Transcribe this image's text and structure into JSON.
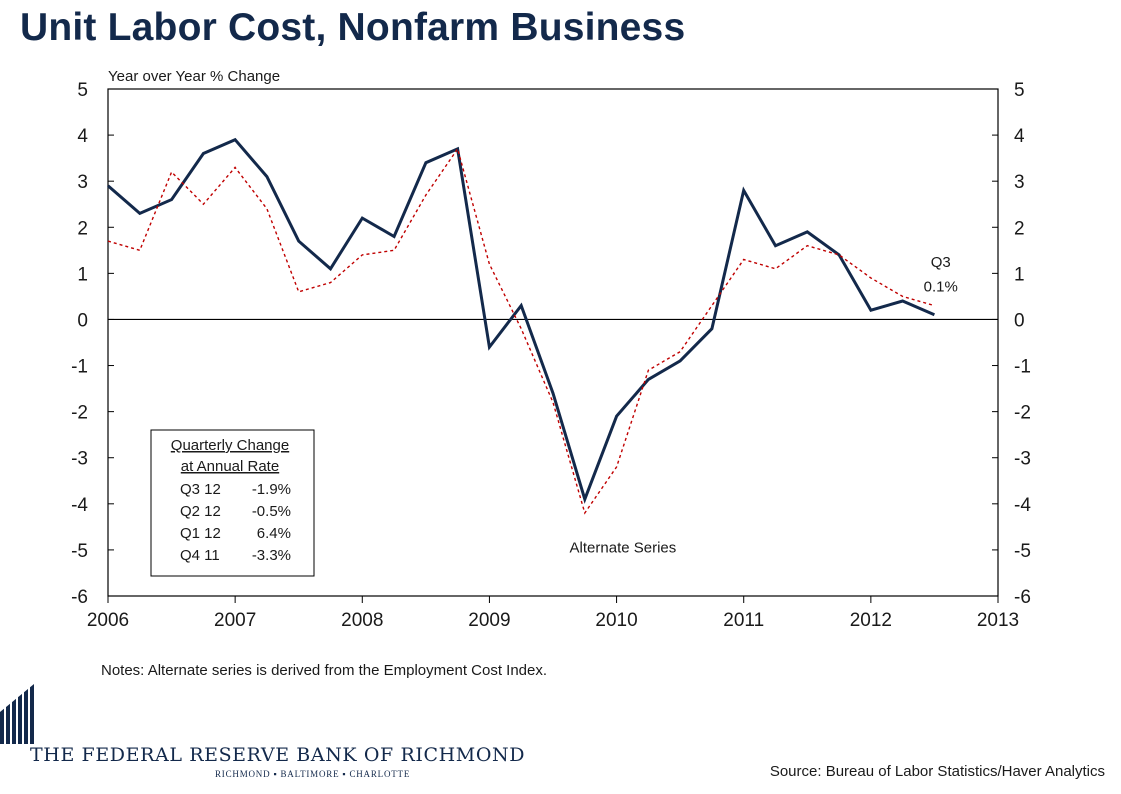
{
  "title": "Unit Labor Cost, Nonfarm Business",
  "notes": "Notes: Alternate series is derived from the Employment Cost Index.",
  "source": "Source: Bureau of Labor Statistics/Haver Analytics",
  "bank": {
    "name": "THE FEDERAL RESERVE BANK OF RICHMOND",
    "cities": "RICHMOND ▪ BALTIMORE ▪ CHARLOTTE"
  },
  "colors": {
    "title": "#13294b",
    "main_series": "#13294b",
    "alternate_series": "#c00000",
    "axis": "#000000"
  },
  "legend_box": {
    "heading1": "Quarterly Change",
    "heading2": "at Annual Rate",
    "rows": [
      {
        "period": "Q3 12",
        "value": "-1.9%"
      },
      {
        "period": "Q2 12",
        "value": "-0.5%"
      },
      {
        "period": "Q1 12",
        "value": "6.4%"
      },
      {
        "period": "Q4 11",
        "value": "-3.3%"
      }
    ]
  },
  "chart_data": {
    "type": "line",
    "title": "Unit Labor Cost, Nonfarm Business",
    "ylabel": "Year over Year % Change",
    "xlabel": "",
    "xlim": [
      2006,
      2013
    ],
    "ylim": [
      -6,
      5
    ],
    "x_ticks": [
      "2006",
      "2007",
      "2008",
      "2009",
      "2010",
      "2011",
      "2012",
      "2013"
    ],
    "y_ticks": [
      "5",
      "4",
      "3",
      "2",
      "1",
      "0",
      "-1",
      "-2",
      "-3",
      "-4",
      "-5",
      "-6"
    ],
    "annotations": [
      {
        "text": "Q3",
        "x": 2012.55,
        "y": 1.25
      },
      {
        "text": "0.1%",
        "x": 2012.55,
        "y": 0.72
      },
      {
        "text": "Alternate Series",
        "x": 2010.05,
        "y": -4.95
      }
    ],
    "series": [
      {
        "name": "Unit Labor Cost",
        "style": "solid",
        "x": [
          2006.0,
          2006.25,
          2006.5,
          2006.75,
          2007.0,
          2007.25,
          2007.5,
          2007.75,
          2008.0,
          2008.25,
          2008.5,
          2008.75,
          2009.0,
          2009.25,
          2009.5,
          2009.75,
          2010.0,
          2010.25,
          2010.5,
          2010.75,
          2011.0,
          2011.25,
          2011.5,
          2011.75,
          2012.0,
          2012.25,
          2012.5
        ],
        "values": [
          2.9,
          2.3,
          2.6,
          3.6,
          3.9,
          3.1,
          1.7,
          1.1,
          2.2,
          1.8,
          3.4,
          3.7,
          -0.6,
          0.3,
          -1.6,
          -3.9,
          -2.1,
          -1.3,
          -0.9,
          -0.2,
          2.8,
          1.6,
          1.9,
          1.4,
          0.2,
          0.4,
          0.1
        ]
      },
      {
        "name": "Alternate Series",
        "style": "dashed",
        "x": [
          2006.0,
          2006.25,
          2006.5,
          2006.75,
          2007.0,
          2007.25,
          2007.5,
          2007.75,
          2008.0,
          2008.25,
          2008.5,
          2008.75,
          2009.0,
          2009.25,
          2009.5,
          2009.75,
          2010.0,
          2010.25,
          2010.5,
          2010.75,
          2011.0,
          2011.25,
          2011.5,
          2011.75,
          2012.0,
          2012.25,
          2012.5
        ],
        "values": [
          1.7,
          1.5,
          3.2,
          2.5,
          3.3,
          2.4,
          0.6,
          0.8,
          1.4,
          1.5,
          2.7,
          3.7,
          1.2,
          -0.2,
          -1.8,
          -4.2,
          -3.2,
          -1.1,
          -0.7,
          0.3,
          1.3,
          1.1,
          1.6,
          1.4,
          0.9,
          0.5,
          0.3
        ]
      }
    ]
  }
}
